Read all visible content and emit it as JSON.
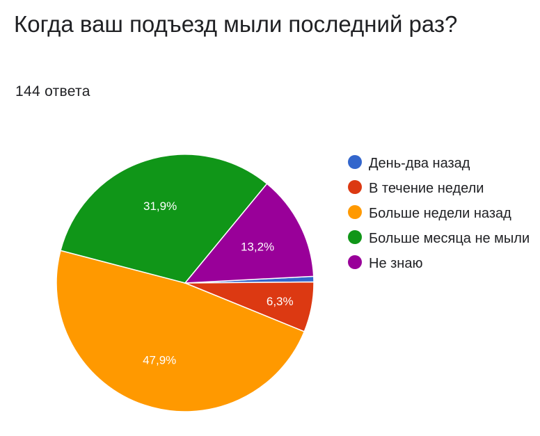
{
  "header": {
    "title": "Когда ваш подъезд мыли последний раз?",
    "response_count": "144 ответа"
  },
  "chart_data": {
    "type": "pie",
    "categories": [
      "День-два назад",
      "В течение недели",
      "Больше недели назад",
      "Больше месяца не мыли",
      "Не знаю"
    ],
    "values": [
      0.7,
      6.3,
      47.9,
      31.9,
      13.2
    ],
    "labels": [
      "",
      "6,3%",
      "47,9%",
      "31,9%",
      "13,2%"
    ],
    "colors": [
      "#3366cc",
      "#dc3912",
      "#ff9900",
      "#109618",
      "#990099"
    ],
    "legend_position": "right"
  }
}
